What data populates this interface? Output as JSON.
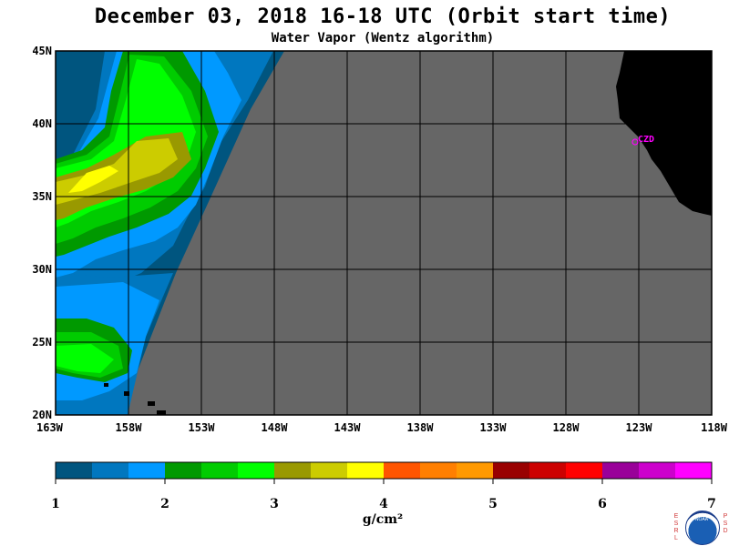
{
  "header": {
    "title": "December 03, 2018  16-18 UTC  (Orbit start time)",
    "subtitle": "Water Vapor (Wentz algorithm)"
  },
  "map": {
    "lat_range": [
      20,
      45
    ],
    "lon_range": [
      -163,
      -118
    ],
    "lat_labels": [
      "45N",
      "40N",
      "35N",
      "30N",
      "25N",
      "20N"
    ],
    "lon_labels": [
      "163W",
      "158W",
      "153W",
      "148W",
      "143W",
      "138W",
      "133W",
      "128W",
      "123W",
      "118W"
    ],
    "station_label": "CZD",
    "colors": {
      "no_data": "#666666",
      "land": "#000000",
      "grid": "#000000",
      "station": "#ff00ff"
    }
  },
  "colorbar": {
    "ticks": [
      "1",
      "2",
      "3",
      "4",
      "5",
      "6",
      "7"
    ],
    "units": "g/cm²",
    "range": [
      1,
      7
    ],
    "colors": [
      "#00557f",
      "#0077bf",
      "#0099ff",
      "#009900",
      "#00cc00",
      "#00ff00",
      "#999900",
      "#cccc00",
      "#ffff00",
      "#ff5500",
      "#ff7f00",
      "#ff9900",
      "#990000",
      "#cc0000",
      "#ff0000",
      "#990099",
      "#cc00cc",
      "#ff00ff"
    ]
  },
  "logo": {
    "left_letters": "ESRL",
    "right_letters": "PSD",
    "text": "NOAA"
  }
}
